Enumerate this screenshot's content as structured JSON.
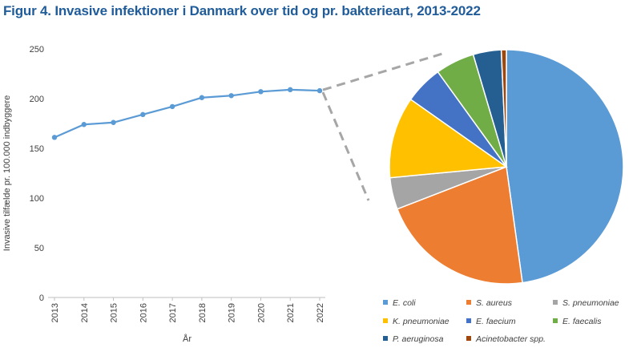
{
  "title": "Figur 4. Invasive infektioner i Danmark over tid og pr. bakterieart, 2013-2022",
  "chart_data": [
    {
      "type": "line",
      "x": [
        "2013",
        "2014",
        "2015",
        "2016",
        "2017",
        "2018",
        "2019",
        "2020",
        "2021",
        "2022"
      ],
      "series": [
        {
          "values": [
            161,
            174,
            176,
            184,
            192,
            201,
            203,
            207,
            209,
            208
          ],
          "color": "#5b9bd5"
        }
      ],
      "xlabel": "År",
      "ylabel": "Invasive tilfælde pr. 100.000 indbyggere",
      "ylim": [
        0,
        250
      ],
      "yticks": [
        0,
        50,
        100,
        150,
        200,
        250
      ],
      "grid": false,
      "x_tick_rotation": "vertical"
    },
    {
      "type": "pie",
      "labels": [
        "E. coli",
        "S. aureus",
        "S. pneumoniae",
        "K. pneumoniae",
        "E. faecium",
        "E. faecalis",
        "P. aeruginosa",
        "Acinetobacter spp."
      ],
      "values": [
        48.0,
        21.4,
        4.4,
        11.3,
        5.3,
        5.4,
        3.9,
        0.7
      ],
      "colors": [
        "#5b9bd5",
        "#ed7d31",
        "#a5a5a5",
        "#ffc000",
        "#4472c4",
        "#70ad47",
        "#255e91",
        "#9e480e"
      ],
      "legend": "bottom"
    }
  ],
  "connector": {
    "color": "#a6a6a6",
    "style": "dashed"
  }
}
